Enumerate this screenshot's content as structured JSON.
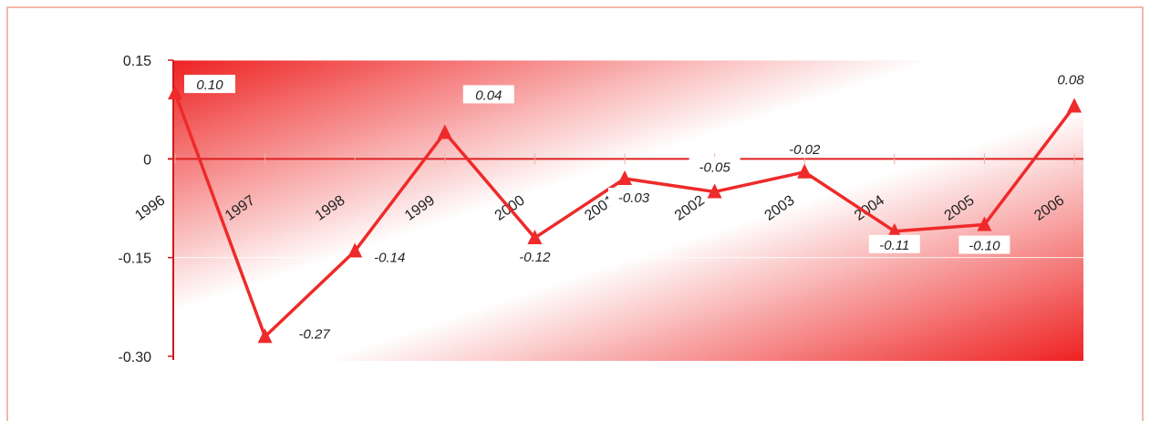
{
  "chart_data": {
    "type": "line",
    "title": "",
    "xlabel": "",
    "ylabel": "",
    "categories": [
      "1996",
      "1997",
      "1998",
      "1999",
      "2000",
      "2001",
      "2002",
      "2003",
      "2004",
      "2005",
      "2006"
    ],
    "series": [
      {
        "values": [
          0.1,
          -0.27,
          -0.14,
          0.04,
          -0.12,
          -0.03,
          -0.05,
          -0.02,
          -0.11,
          -0.1,
          0.08
        ],
        "labels": [
          "0.10",
          "-0.27",
          "-0.14",
          "0.04",
          "-0.12",
          "-0.03",
          "-0.05",
          "-0.02",
          "-0.11",
          "-0.10",
          "0.08"
        ]
      }
    ],
    "yticks": [
      0.15,
      0,
      -0.15,
      -0.3
    ],
    "ytick_labels": [
      "0.15",
      "0",
      "-0.15",
      "-0.30"
    ],
    "ylim": [
      -0.3,
      0.15
    ],
    "grid": "horizontal",
    "legend": "none",
    "colors": {
      "line": "#ee2a2a",
      "gradient_dark": "#ee2222",
      "gradient_light": "#ffffff",
      "frame": "#f0a090"
    }
  }
}
